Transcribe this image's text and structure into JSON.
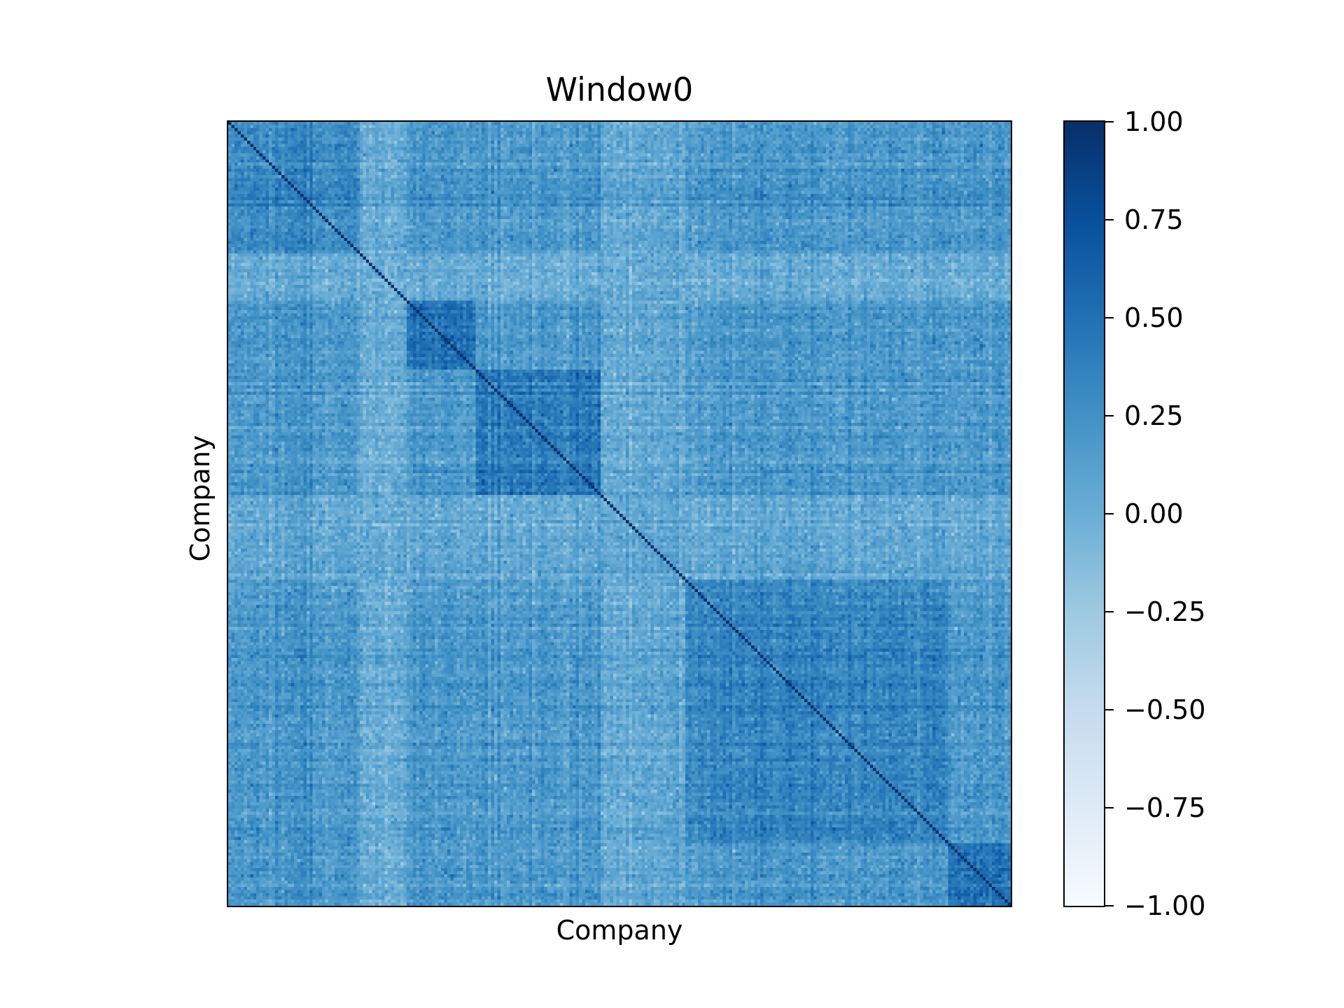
{
  "chart_data": {
    "type": "heatmap",
    "title": "Window0",
    "xlabel": "Company",
    "ylabel": "Company",
    "colormap": "Blues",
    "vmin": -1.0,
    "vmax": 1.0,
    "matrix_size": 250,
    "diagonal_value": 1.0,
    "typical_offdiagonal_value": 0.2,
    "within_block_value": 0.45,
    "light_bands_value": 0.0,
    "groups": [
      {
        "start": 0,
        "end": 57,
        "within": 0.3
      },
      {
        "start": 57,
        "end": 79,
        "within": 0.5
      },
      {
        "start": 79,
        "end": 119,
        "within": 0.45
      },
      {
        "start": 119,
        "end": 146,
        "within": 0.15
      },
      {
        "start": 146,
        "end": 230,
        "within": 0.35
      },
      {
        "start": 230,
        "end": 250,
        "within": 0.5
      }
    ],
    "light_bands": [
      {
        "start": 42,
        "end": 57
      },
      {
        "start": 119,
        "end": 146
      }
    ],
    "colorbar": {
      "ticks": [
        1.0,
        0.75,
        0.5,
        0.25,
        0.0,
        -0.25,
        -0.5,
        -0.75,
        -1.0
      ],
      "tick_labels": [
        "1.00",
        "0.75",
        "0.50",
        "0.25",
        "0.00",
        "−0.25",
        "−0.50",
        "−0.75",
        "−1.00"
      ]
    },
    "x_ticks": [],
    "y_ticks": []
  }
}
